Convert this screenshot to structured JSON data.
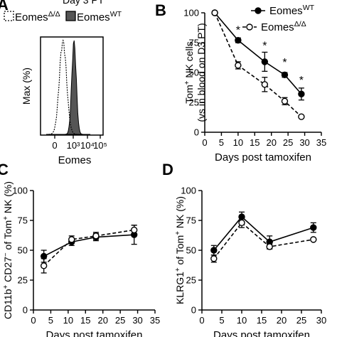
{
  "panels": {
    "A": {
      "letter": "A",
      "header": "Day 3 PT"
    },
    "B": {
      "letter": "B"
    },
    "C": {
      "letter": "C"
    },
    "D": {
      "letter": "D"
    }
  },
  "chart_data": [
    {
      "panel": "A",
      "type": "area",
      "subtype": "histogram-overlay",
      "ylabel": "Max (%)",
      "xlabel": "Eomes",
      "xscale": "biexponential",
      "x_ticks": [
        "0",
        "10³",
        "10⁴",
        "10⁵"
      ],
      "x_tick_values": [
        0,
        1000,
        10000,
        100000
      ],
      "legend": [
        {
          "name": "EomesΔ/Δ",
          "name_base": "Eomes",
          "name_sup": "Δ/Δ",
          "style": "dashed-open"
        },
        {
          "name": "EomesWT",
          "name_base": "Eomes",
          "name_sup": "WT",
          "style": "filled-dark"
        }
      ],
      "legend_placement": "top",
      "series": [
        {
          "name": "EomesΔ/Δ",
          "peak_x": 300,
          "fill": "none",
          "stroke": "#000000"
        },
        {
          "name": "EomesWT",
          "peak_x": 1800,
          "fill": "#555555",
          "stroke": "#000000"
        }
      ]
    },
    {
      "panel": "B",
      "type": "line",
      "xlabel": "Days post tamoxifen",
      "ylabel_lines": [
        "Tom+ NK cells",
        "(vs in blood on D3 PT)"
      ],
      "ylabel_parts": [
        [
          {
            "t": "Tom"
          },
          {
            "t": "+",
            "sup": true
          },
          {
            "t": " NK cells"
          }
        ],
        [
          {
            "t": "(vs in blood on D3 PT)"
          }
        ]
      ],
      "x_ticks": [
        0,
        5,
        10,
        15,
        20,
        25,
        30,
        35
      ],
      "y_ticks": [
        0,
        25,
        50,
        75,
        100
      ],
      "xlim": [
        0,
        35
      ],
      "ylim": [
        0,
        100
      ],
      "legend_placement": "top-right",
      "series": [
        {
          "name": "EomesWT",
          "name_base": "Eomes",
          "name_sup": "WT",
          "marker": "filled",
          "dash": "solid",
          "x": [
            3,
            10,
            18,
            24,
            29
          ],
          "y": [
            100,
            77,
            59,
            48,
            32
          ],
          "err": [
            0,
            2,
            8,
            2,
            5
          ]
        },
        {
          "name": "EomesΔ/Δ",
          "name_base": "Eomes",
          "name_sup": "Δ/Δ",
          "marker": "open",
          "dash": "dashed",
          "x": [
            3,
            10,
            18,
            24,
            29
          ],
          "y": [
            100,
            56,
            40,
            26,
            13
          ],
          "err": [
            0,
            3,
            6,
            3,
            0
          ]
        }
      ],
      "annotations": [
        {
          "text": "*",
          "x": 10,
          "y": 86
        },
        {
          "text": "*",
          "x": 18,
          "y": 73
        },
        {
          "text": "*",
          "x": 24,
          "y": 59
        },
        {
          "text": "*",
          "x": 29,
          "y": 44
        }
      ]
    },
    {
      "panel": "C",
      "type": "line",
      "xlabel": "Days post tamoxifen",
      "ylabel_parts": [
        [
          {
            "t": "CD11b"
          },
          {
            "t": "+",
            "sup": true
          },
          {
            "t": " CD27"
          },
          {
            "t": "−",
            "sup": true
          },
          {
            "t": " of Tom"
          },
          {
            "t": "+",
            "sup": true
          },
          {
            "t": " NK (%)"
          }
        ]
      ],
      "x_ticks": [
        0,
        5,
        10,
        15,
        20,
        25,
        30,
        35
      ],
      "y_ticks": [
        0,
        25,
        50,
        75,
        100
      ],
      "xlim": [
        0,
        35
      ],
      "ylim": [
        0,
        100
      ],
      "series": [
        {
          "name": "EomesWT",
          "marker": "filled",
          "dash": "solid",
          "x": [
            3,
            11,
            18,
            29
          ],
          "y": [
            45,
            57,
            61,
            63
          ],
          "err": [
            5,
            3,
            3,
            8
          ]
        },
        {
          "name": "EomesΔ/Δ",
          "marker": "open",
          "dash": "dashed",
          "x": [
            3,
            11,
            18,
            29
          ],
          "y": [
            37,
            59,
            62,
            67
          ],
          "err": [
            6,
            3,
            3,
            4
          ]
        }
      ]
    },
    {
      "panel": "D",
      "type": "line",
      "xlabel": "Days post tamoxifen",
      "ylabel_parts": [
        [
          {
            "t": "KLRG1"
          },
          {
            "t": "+",
            "sup": true
          },
          {
            "t": " of Tom"
          },
          {
            "t": "+",
            "sup": true
          },
          {
            "t": " NK (%)"
          }
        ]
      ],
      "x_ticks": [
        0,
        5,
        10,
        15,
        20,
        25,
        30
      ],
      "y_ticks": [
        0,
        25,
        50,
        75,
        100
      ],
      "xlim": [
        0,
        30
      ],
      "ylim": [
        0,
        100
      ],
      "series": [
        {
          "name": "EomesWT",
          "marker": "filled",
          "dash": "solid",
          "x": [
            3,
            10,
            17,
            28
          ],
          "y": [
            50,
            78,
            57,
            69
          ],
          "err": [
            4,
            4,
            5,
            4
          ]
        },
        {
          "name": "EomesΔ/Δ",
          "marker": "open",
          "dash": "dashed",
          "x": [
            3,
            10,
            17,
            28
          ],
          "y": [
            43,
            73,
            53,
            59
          ],
          "err": [
            3,
            4,
            2,
            0
          ]
        }
      ]
    }
  ]
}
